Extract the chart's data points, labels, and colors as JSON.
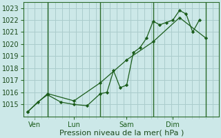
{
  "background_color": "#cce8e8",
  "grid_color": "#aacccc",
  "line_color": "#1a5c1a",
  "marker_color": "#1a5c1a",
  "xlabel": "Pression niveau de la mer( hPa )",
  "ylim": [
    1014.0,
    1023.5
  ],
  "yticks": [
    1015,
    1016,
    1017,
    1018,
    1019,
    1020,
    1021,
    1022,
    1023
  ],
  "day_labels": [
    "Ven",
    "Lun",
    "Sam",
    "Dim"
  ],
  "day_positions": [
    0.5,
    3.5,
    7.5,
    11.0
  ],
  "vline_positions": [
    1.5,
    5.5,
    9.5,
    13.5
  ],
  "series1_x": [
    0.0,
    0.75,
    1.5,
    2.5,
    3.5,
    4.5,
    5.5,
    6.0,
    6.5,
    7.0,
    7.5,
    8.0,
    8.5,
    9.0,
    9.5,
    10.0,
    10.5,
    11.0,
    11.5,
    12.0,
    12.5,
    13.0
  ],
  "series1_y": [
    1014.4,
    1015.2,
    1015.8,
    1015.2,
    1015.0,
    1014.9,
    1015.9,
    1016.0,
    1017.8,
    1016.4,
    1016.6,
    1019.3,
    1019.7,
    1020.5,
    1021.9,
    1021.6,
    1021.8,
    1022.0,
    1022.8,
    1022.5,
    1021.0,
    1022.0
  ],
  "series2_x": [
    0.0,
    1.5,
    3.5,
    5.5,
    7.5,
    9.5,
    11.5,
    13.5
  ],
  "series2_y": [
    1014.4,
    1015.9,
    1015.3,
    1016.8,
    1018.7,
    1020.2,
    1022.2,
    1020.5
  ],
  "xlim": [
    -0.3,
    14.5
  ],
  "font_size_label": 8,
  "font_size_tick": 7,
  "minor_x_step": 0.5
}
